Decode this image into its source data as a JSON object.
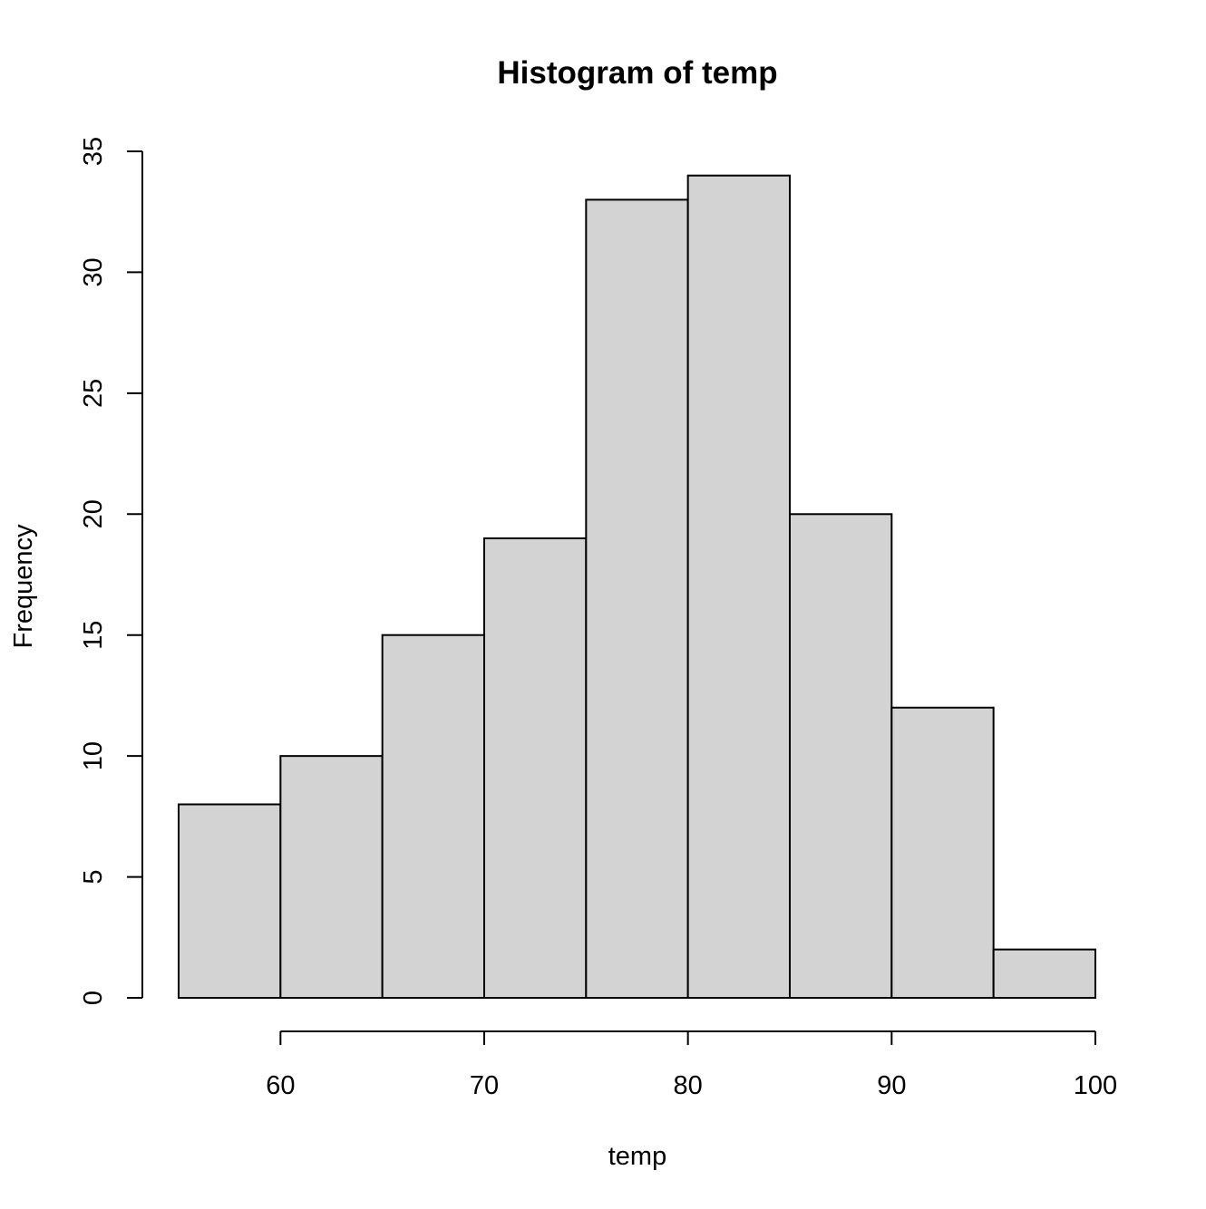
{
  "chart_data": {
    "type": "bar",
    "title": "Histogram of temp",
    "xlabel": "temp",
    "ylabel": "Frequency",
    "bins": [
      {
        "from": 55,
        "to": 60,
        "count": 8
      },
      {
        "from": 60,
        "to": 65,
        "count": 10
      },
      {
        "from": 65,
        "to": 70,
        "count": 15
      },
      {
        "from": 70,
        "to": 75,
        "count": 19
      },
      {
        "from": 75,
        "to": 80,
        "count": 33
      },
      {
        "from": 80,
        "to": 85,
        "count": 34
      },
      {
        "from": 85,
        "to": 90,
        "count": 20
      },
      {
        "from": 90,
        "to": 95,
        "count": 12
      },
      {
        "from": 95,
        "to": 100,
        "count": 2
      }
    ],
    "xticks": [
      60,
      70,
      80,
      90,
      100
    ],
    "yticks": [
      0,
      5,
      10,
      15,
      20,
      25,
      30,
      35
    ],
    "xlim": [
      55,
      100
    ],
    "ylim": [
      0,
      35
    ],
    "grid": false,
    "colors": {
      "bar_fill": "#d3d3d3",
      "bar_stroke": "#000000"
    }
  }
}
